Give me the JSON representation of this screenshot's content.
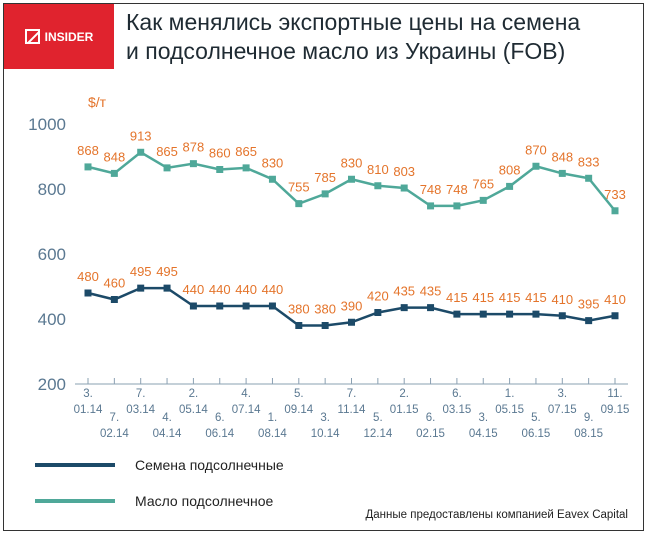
{
  "logo": {
    "text": "INSIDER"
  },
  "title": {
    "line1": "Как менялись экспортные цены на семена",
    "line2": "и подсолнечное масло из Украины (FOB)"
  },
  "source": "Данные предоставлены компанией Eavex Capital",
  "chart_data": {
    "type": "line",
    "title": "Как менялись экспортные цены на семена и подсолнечное масло из Украины (FOB)",
    "ylabel": "$/т",
    "ylim": [
      200,
      1000
    ],
    "yticks": [
      "1000",
      "800",
      "600",
      "400",
      "200"
    ],
    "grid": false,
    "legend": "bottom-left",
    "x_days": [
      "3.",
      "7.",
      "7.",
      "4.",
      "2.",
      "6.",
      "4.",
      "1.",
      "5.",
      "3.",
      "7.",
      "5.",
      "2.",
      "6.",
      "6.",
      "3.",
      "1.",
      "5.",
      "3.",
      "9.",
      "11."
    ],
    "x_months": [
      "01.14",
      "02.14",
      "03.14",
      "04.14",
      "05.14",
      "06.14",
      "07.14",
      "08.14",
      "09.14",
      "10.14",
      "11.14",
      "12.14",
      "01.15",
      "02.15",
      "03.15",
      "04.15",
      "05.15",
      "06.15",
      "07.15",
      "08.15",
      "09.15"
    ],
    "series": [
      {
        "name": "Семена подсолнечные",
        "color": "#1c4a68",
        "values": [
          480,
          460,
          495,
          495,
          440,
          440,
          440,
          440,
          380,
          380,
          390,
          420,
          435,
          435,
          415,
          415,
          415,
          415,
          410,
          395,
          410
        ]
      },
      {
        "name": "Масло подсолнечное",
        "color": "#4fa899",
        "values": [
          868,
          848,
          913,
          865,
          878,
          860,
          865,
          830,
          755,
          785,
          830,
          810,
          803,
          748,
          748,
          765,
          808,
          870,
          848,
          833,
          733
        ]
      }
    ],
    "label_color": "#e4742b",
    "axis_color": "#5a7891"
  }
}
